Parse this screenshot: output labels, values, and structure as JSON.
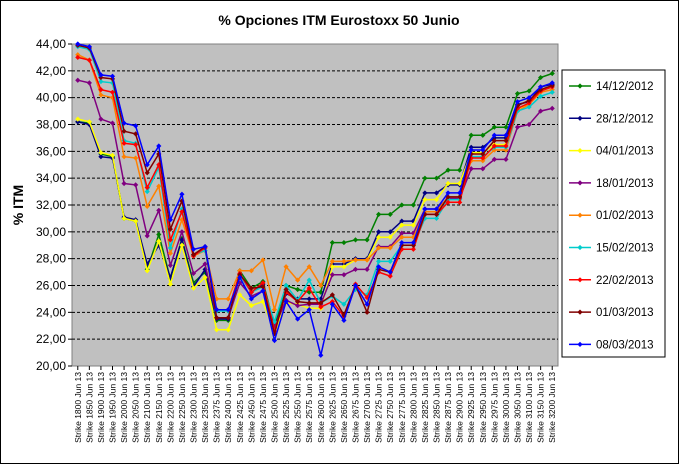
{
  "chart_data": {
    "type": "line",
    "title": "% Opciones ITM Eurostoxx 50 Junio",
    "ylabel": "% ITM",
    "xlabel": "",
    "ylim": [
      20,
      44
    ],
    "yticks": [
      "20,00",
      "22,00",
      "24,00",
      "26,00",
      "28,00",
      "30,00",
      "32,00",
      "34,00",
      "36,00",
      "38,00",
      "40,00",
      "42,00",
      "44,00"
    ],
    "grid": "horizontal dashed",
    "legend_position": "right",
    "categories": [
      "Strike 1800 Jun 13",
      "Strike 1850 Jun 13",
      "Strike 1900 Jun 13",
      "Strike 1950 Jun 13",
      "Strike 2000 Jun 13",
      "Strike 2050 Jun 13",
      "Strike 2100 Jun 13",
      "Strike 2150 Jun 13",
      "Strike 2200 Jun 13",
      "Strike 2250 Jun 13",
      "Strike 2300 Jun 13",
      "Strike 2350 Jun 13",
      "Strike 2375 Jun 13",
      "Strike 2400 Jun 13",
      "Strike 2425 Jun 13",
      "Strike 2450 Jun 13",
      "Strike 2475 Jun 13",
      "Strike 2500 Jun 13",
      "Strike 2525 Jun 13",
      "Strike 2550 Jun 13",
      "Strike 2575 Jun 13",
      "Strike 2600 Jun 13",
      "Strike 2625 Jun 13",
      "Strike 2650 Jun 13",
      "Strike 2675 Jun 13",
      "Strike 2700 Jun 13",
      "Strike 2725 Jun 13",
      "Strike 2750 Jun 13",
      "Strike 2775 Jun 13",
      "Strike 2800 Jun 13",
      "Strike 2825 Jun 13",
      "Strike 2850 Jun 13",
      "Strike 2875 Jun 13",
      "Strike 2900 Jun 13",
      "Strike 2925 Jun 13",
      "Strike 2950 Jun 13",
      "Strike 2975 Jun 13",
      "Strike 3000 Jun 13",
      "Strike 3050 Jun 13",
      "Strike 3100 Jun 13",
      "Strike 3150 Jun 13",
      "Strike 3200 Jun 13"
    ],
    "series": [
      {
        "name": "14/12/2012",
        "color": "#008000",
        "marker": "diamond",
        "values": [
          38.2,
          38.1,
          35.8,
          35.6,
          31.0,
          30.8,
          27.2,
          29.8,
          26.5,
          29.5,
          26.2,
          27.0,
          23.4,
          23.4,
          27.1,
          25.8,
          26.3,
          23.0,
          26.0,
          25.7,
          25.5,
          25.5,
          29.2,
          29.2,
          29.4,
          29.4,
          31.3,
          31.3,
          32.0,
          32.0,
          34.0,
          34.0,
          34.6,
          34.6,
          37.2,
          37.2,
          37.8,
          37.8,
          40.3,
          40.5,
          41.5,
          41.8
        ]
      },
      {
        "name": "28/12/2012",
        "color": "#000080",
        "marker": "diamond",
        "values": [
          38.2,
          38.0,
          35.6,
          35.5,
          31.1,
          30.9,
          27.6,
          29.0,
          26.6,
          29.4,
          25.9,
          27.2,
          23.5,
          23.5,
          26.8,
          25.5,
          26.1,
          22.8,
          25.4,
          25.0,
          25.0,
          25.0,
          27.6,
          27.6,
          28.0,
          28.0,
          30.0,
          30.0,
          30.8,
          30.8,
          32.9,
          32.9,
          33.5,
          33.5,
          36.3,
          36.3,
          37.0,
          37.0,
          39.5,
          39.7,
          40.8,
          41.0
        ]
      },
      {
        "name": "04/01/2013",
        "color": "#ffff00",
        "marker": "diamond",
        "values": [
          38.4,
          38.2,
          35.9,
          35.7,
          31.0,
          30.8,
          27.1,
          29.3,
          26.1,
          29.0,
          25.8,
          26.6,
          22.7,
          22.7,
          25.3,
          24.5,
          24.8,
          22.5,
          24.7,
          24.6,
          24.3,
          24.3,
          27.4,
          27.4,
          27.9,
          27.9,
          29.6,
          29.6,
          30.5,
          30.5,
          32.4,
          32.4,
          33.6,
          33.6,
          35.9,
          35.9,
          36.5,
          36.5,
          39.2,
          39.5,
          40.6,
          40.8
        ]
      },
      {
        "name": "18/01/2013",
        "color": "#800080",
        "marker": "diamond",
        "values": [
          41.3,
          41.1,
          38.4,
          38.1,
          33.6,
          33.5,
          29.7,
          31.6,
          27.5,
          30.0,
          26.9,
          27.6,
          23.6,
          23.6,
          26.2,
          25.2,
          25.6,
          22.9,
          24.9,
          24.5,
          24.6,
          24.6,
          26.8,
          26.8,
          27.2,
          27.2,
          28.9,
          28.9,
          29.9,
          29.9,
          31.7,
          31.7,
          32.5,
          32.5,
          34.7,
          34.7,
          35.4,
          35.4,
          37.8,
          38.0,
          39.0,
          39.2
        ]
      },
      {
        "name": "01/02/2013",
        "color": "#ff8000",
        "marker": "diamond",
        "values": [
          43.2,
          42.8,
          40.2,
          40.0,
          35.6,
          35.5,
          31.9,
          33.4,
          28.4,
          30.9,
          28.2,
          28.6,
          25.0,
          25.0,
          27.1,
          27.1,
          27.9,
          24.2,
          27.4,
          26.4,
          27.4,
          26.0,
          27.8,
          27.8,
          27.9,
          27.9,
          28.8,
          28.8,
          29.6,
          29.6,
          31.5,
          31.5,
          32.6,
          32.6,
          35.3,
          35.3,
          36.1,
          36.1,
          39.0,
          39.5,
          40.4,
          40.6
        ]
      },
      {
        "name": "15/02/2013",
        "color": "#00cccc",
        "marker": "diamond",
        "values": [
          43.8,
          43.6,
          41.2,
          41.1,
          36.8,
          36.6,
          33.0,
          34.8,
          28.8,
          31.7,
          28.3,
          28.6,
          24.1,
          24.1,
          26.8,
          25.5,
          25.9,
          23.3,
          26.0,
          24.9,
          26.4,
          24.7,
          25.2,
          24.6,
          25.7,
          25.3,
          27.8,
          27.8,
          29.0,
          29.0,
          31.0,
          31.0,
          32.4,
          32.4,
          35.6,
          35.6,
          36.3,
          36.3,
          39.0,
          39.3,
          40.1,
          40.4
        ]
      },
      {
        "name": "22/02/2013",
        "color": "#ff0000",
        "marker": "diamond",
        "values": [
          43.0,
          42.8,
          40.6,
          40.4,
          36.6,
          36.5,
          33.3,
          35.0,
          29.4,
          31.5,
          28.2,
          28.8,
          24.2,
          24.2,
          26.9,
          25.5,
          26.2,
          22.6,
          25.5,
          24.8,
          25.8,
          24.4,
          24.8,
          23.7,
          26.1,
          25.1,
          27.0,
          26.7,
          28.7,
          28.7,
          31.3,
          31.3,
          32.2,
          32.2,
          35.5,
          35.5,
          36.4,
          36.4,
          39.2,
          39.6,
          40.5,
          40.8
        ]
      },
      {
        "name": "01/03/2013",
        "color": "#800000",
        "marker": "diamond",
        "values": [
          43.9,
          43.7,
          41.5,
          41.4,
          37.5,
          37.3,
          34.4,
          35.8,
          30.2,
          32.3,
          28.3,
          28.9,
          23.6,
          23.6,
          26.8,
          25.8,
          25.9,
          22.4,
          25.7,
          24.8,
          24.7,
          24.7,
          25.3,
          23.8,
          26.0,
          24.0,
          27.2,
          27.0,
          29.0,
          29.0,
          31.3,
          31.3,
          32.6,
          32.6,
          35.8,
          35.8,
          36.8,
          36.8,
          39.4,
          39.8,
          40.6,
          40.9
        ]
      },
      {
        "name": "08/03/2013",
        "color": "#0000ff",
        "marker": "diamond",
        "values": [
          44.0,
          43.8,
          41.7,
          41.6,
          38.1,
          37.9,
          35.0,
          36.4,
          30.9,
          32.8,
          28.7,
          28.9,
          24.2,
          24.2,
          26.6,
          25.0,
          25.6,
          21.9,
          24.8,
          23.5,
          24.2,
          20.8,
          24.6,
          23.4,
          26.0,
          24.6,
          27.4,
          27.0,
          29.2,
          29.2,
          31.7,
          31.7,
          32.9,
          32.9,
          36.1,
          36.1,
          37.2,
          37.2,
          39.7,
          40.0,
          40.8,
          41.1
        ]
      }
    ]
  }
}
